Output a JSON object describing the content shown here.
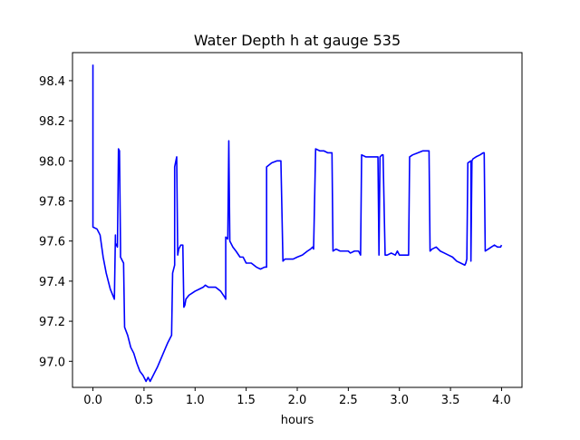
{
  "chart_data": {
    "type": "line",
    "title": "Water Depth h at gauge 535",
    "xlabel": "hours",
    "ylabel": "",
    "xlim": [
      -0.2,
      4.2
    ],
    "ylim": [
      96.87,
      98.54
    ],
    "grid": false,
    "legend": "none",
    "x_ticks": [
      0.0,
      0.5,
      1.0,
      1.5,
      2.0,
      2.5,
      3.0,
      3.5,
      4.0
    ],
    "x_tick_labels": [
      "0.0",
      "0.5",
      "1.0",
      "1.5",
      "2.0",
      "2.5",
      "3.0",
      "3.5",
      "4.0"
    ],
    "y_ticks": [
      97.0,
      97.2,
      97.4,
      97.6,
      97.8,
      98.0,
      98.2,
      98.4
    ],
    "y_tick_labels": [
      "97.0",
      "97.2",
      "97.4",
      "97.6",
      "97.8",
      "98.0",
      "98.2",
      "98.4"
    ],
    "series": [
      {
        "color": "#0000ff",
        "x": [
          0.0,
          0.0,
          0.0,
          0.0,
          0.04,
          0.07,
          0.1,
          0.13,
          0.17,
          0.21,
          0.22,
          0.22,
          0.24,
          0.25,
          0.26,
          0.27,
          0.27,
          0.3,
          0.31,
          0.34,
          0.37,
          0.4,
          0.43,
          0.46,
          0.49,
          0.52,
          0.54,
          0.56,
          0.58,
          0.6,
          0.63,
          0.68,
          0.73,
          0.77,
          0.78,
          0.8,
          0.8,
          0.82,
          0.83,
          0.84,
          0.86,
          0.88,
          0.89,
          0.9,
          0.91,
          0.94,
          0.97,
          1.0,
          1.04,
          1.08,
          1.1,
          1.13,
          1.17,
          1.2,
          1.25,
          1.29,
          1.3,
          1.3,
          1.32,
          1.33,
          1.34,
          1.37,
          1.4,
          1.44,
          1.47,
          1.5,
          1.55,
          1.6,
          1.64,
          1.68,
          1.7,
          1.7,
          1.75,
          1.8,
          1.84,
          1.86,
          1.88,
          1.92,
          1.96,
          2.0,
          2.05,
          2.1,
          2.13,
          2.15,
          2.16,
          2.18,
          2.22,
          2.26,
          2.3,
          2.33,
          2.34,
          2.35,
          2.38,
          2.42,
          2.46,
          2.5,
          2.52,
          2.56,
          2.6,
          2.62,
          2.63,
          2.67,
          2.72,
          2.77,
          2.79,
          2.8,
          2.81,
          2.83,
          2.84,
          2.86,
          2.88,
          2.92,
          2.96,
          2.98,
          3.0,
          3.04,
          3.08,
          3.09,
          3.1,
          3.13,
          3.18,
          3.23,
          3.29,
          3.3,
          3.32,
          3.36,
          3.4,
          3.44,
          3.48,
          3.52,
          3.56,
          3.6,
          3.64,
          3.65,
          3.66,
          3.67,
          3.7,
          3.7,
          3.71,
          3.71,
          3.72,
          3.75,
          3.79,
          3.82,
          3.83,
          3.84,
          3.87,
          3.9,
          3.93,
          3.96,
          3.99,
          4.0
        ],
        "y": [
          98.48,
          97.99,
          97.8,
          97.67,
          97.66,
          97.63,
          97.52,
          97.44,
          97.36,
          97.31,
          97.63,
          97.59,
          97.57,
          98.06,
          98.05,
          97.57,
          97.52,
          97.49,
          97.17,
          97.13,
          97.07,
          97.04,
          96.99,
          96.95,
          96.93,
          96.9,
          96.92,
          96.9,
          96.92,
          96.94,
          96.97,
          97.03,
          97.09,
          97.13,
          97.44,
          97.48,
          97.97,
          98.02,
          97.53,
          97.56,
          97.58,
          97.58,
          97.27,
          97.28,
          97.31,
          97.33,
          97.34,
          97.35,
          97.36,
          97.37,
          97.38,
          97.37,
          97.37,
          97.37,
          97.35,
          97.32,
          97.31,
          97.62,
          97.61,
          98.1,
          97.6,
          97.57,
          97.55,
          97.52,
          97.52,
          97.49,
          97.49,
          97.47,
          97.46,
          97.47,
          97.47,
          97.97,
          97.99,
          98.0,
          98.0,
          97.5,
          97.51,
          97.51,
          97.51,
          97.52,
          97.53,
          97.55,
          97.56,
          97.57,
          97.56,
          98.06,
          98.05,
          98.05,
          98.04,
          98.04,
          98.04,
          97.55,
          97.56,
          97.55,
          97.55,
          97.55,
          97.54,
          97.55,
          97.55,
          97.53,
          98.03,
          98.02,
          98.02,
          98.02,
          98.02,
          97.53,
          98.02,
          98.03,
          98.03,
          97.53,
          97.53,
          97.54,
          97.53,
          97.55,
          97.53,
          97.53,
          97.53,
          97.53,
          98.02,
          98.03,
          98.04,
          98.05,
          98.05,
          97.55,
          97.56,
          97.57,
          97.55,
          97.54,
          97.53,
          97.52,
          97.5,
          97.49,
          97.48,
          97.49,
          97.51,
          97.99,
          98.0,
          97.5,
          98.0,
          98.0,
          98.01,
          98.02,
          98.03,
          98.04,
          98.04,
          97.55,
          97.56,
          97.57,
          97.58,
          97.57,
          97.57,
          97.58
        ]
      }
    ]
  }
}
